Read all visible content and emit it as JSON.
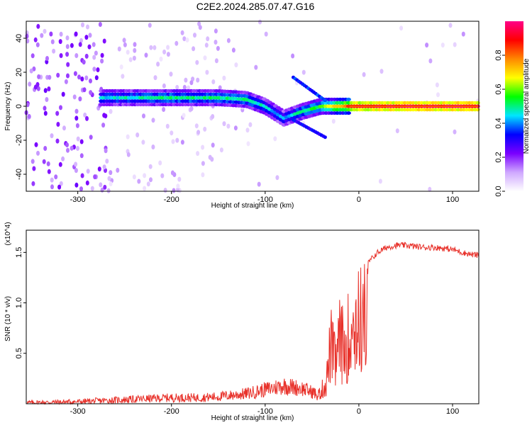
{
  "title": "C2E2.2024.285.07.47.G16",
  "colors": {
    "snr_line": "#e8312a",
    "axes": "#000000",
    "background": "#ffffff"
  },
  "chart_data": [
    {
      "type": "heatmap",
      "xlabel": "Height of straight line (km)",
      "ylabel": "Frequency (Hz)",
      "xlim": [
        -355,
        128
      ],
      "ylim": [
        -50,
        50
      ],
      "x_ticks": [
        -300,
        -200,
        -100,
        0,
        100
      ],
      "y_ticks": [
        -40,
        -20,
        0,
        20,
        40
      ],
      "colorbar": {
        "label": "Normalized spectral amplitude",
        "range": [
          0,
          1
        ],
        "ticks": [
          "0.0",
          "0.2",
          "0.4",
          "0.6",
          "0.8"
        ],
        "tick_values": [
          0.0,
          0.2,
          0.4,
          0.6,
          0.8
        ],
        "colormap": [
          "#ffffff",
          "#cfa8ff",
          "#7a00ff",
          "#0000ff",
          "#00e5ff",
          "#00ff00",
          "#ffff00",
          "#ff8800",
          "#ff0000",
          "#ff0088"
        ]
      },
      "ridge": {
        "description_points": [
          {
            "x": -275,
            "y": 5,
            "amp": 0.45
          },
          {
            "x": -200,
            "y": 5,
            "amp": 0.5
          },
          {
            "x": -150,
            "y": 5,
            "amp": 0.5
          },
          {
            "x": -120,
            "y": 4,
            "amp": 0.5
          },
          {
            "x": -100,
            "y": 0,
            "amp": 0.45
          },
          {
            "x": -80,
            "y": -7,
            "amp": 0.4
          },
          {
            "x": -60,
            "y": -3,
            "amp": 0.5
          },
          {
            "x": -40,
            "y": 0,
            "amp": 0.55
          },
          {
            "x": -20,
            "y": 0,
            "amp": 0.75
          },
          {
            "x": 0,
            "y": 0,
            "amp": 0.9
          },
          {
            "x": 50,
            "y": 0,
            "amp": 0.95
          },
          {
            "x": 128,
            "y": 0,
            "amp": 0.95
          }
        ]
      }
    },
    {
      "type": "line",
      "xlabel": "Height of straight line (km)",
      "ylabel": "SNR (10 * v/v)",
      "y_multiplier": "(x10^4)",
      "xlim": [
        -355,
        128
      ],
      "ylim": [
        0,
        1.72
      ],
      "x_ticks": [
        -300,
        -200,
        -100,
        0,
        100
      ],
      "y_ticks": [
        0.5,
        1.0,
        1.5
      ],
      "y_tick_labels": [
        "0.5",
        "1.0",
        "1.5"
      ],
      "series": [
        {
          "x": [
            -355,
            -300,
            -250,
            -200,
            -170,
            -150,
            -120,
            -100,
            -80,
            -60,
            -45,
            -35,
            -30,
            -25,
            -20,
            -15,
            -10,
            -5,
            0,
            5,
            10,
            20,
            30,
            40,
            50,
            60,
            70,
            80,
            90,
            100,
            110,
            120,
            128
          ],
          "y": [
            0.01,
            0.02,
            0.04,
            0.06,
            0.06,
            0.07,
            0.1,
            0.14,
            0.18,
            0.15,
            0.1,
            0.3,
            0.9,
            0.6,
            1.0,
            0.8,
            1.1,
            1.2,
            1.25,
            1.3,
            1.4,
            1.5,
            1.55,
            1.57,
            1.57,
            1.56,
            1.55,
            1.55,
            1.54,
            1.53,
            1.5,
            1.48,
            1.47
          ]
        }
      ]
    }
  ]
}
